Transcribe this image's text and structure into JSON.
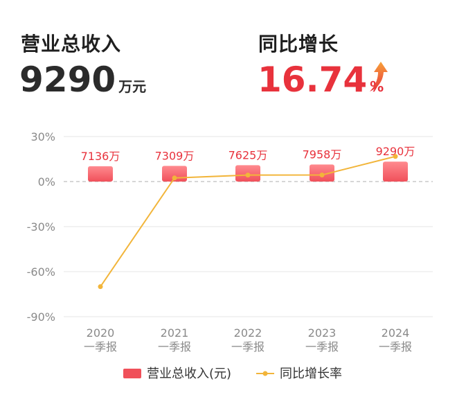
{
  "kpis": {
    "revenue": {
      "label": "营业总收入",
      "value": "9290",
      "unit": "万元"
    },
    "growth": {
      "label": "同比增长",
      "value": "16.74",
      "unit": "%",
      "direction": "up-arrow-icon"
    }
  },
  "colors": {
    "bar": "#f0505a",
    "bar_light": "#ff8a8f",
    "line": "#f2b53a",
    "bar_label": "#e8323c",
    "axis_text": "#8a8a8a",
    "grid": "#e6e6e6",
    "zero_line": "#c8c8c8"
  },
  "chart_data": {
    "type": "bar+line",
    "categories": [
      {
        "year": "2020",
        "period": "一季报"
      },
      {
        "year": "2021",
        "period": "一季报"
      },
      {
        "year": "2022",
        "period": "一季报"
      },
      {
        "year": "2023",
        "period": "一季报"
      },
      {
        "year": "2024",
        "period": "一季报"
      }
    ],
    "bar_labels": [
      "7136万",
      "7309万",
      "7625万",
      "7958万",
      "9290万"
    ],
    "series": [
      {
        "name": "营业总收入(元)",
        "type": "bar",
        "values": [
          7136,
          7309,
          7625,
          7958,
          9290
        ],
        "unit": "万"
      },
      {
        "name": "同比增长率",
        "type": "line",
        "values": [
          -70,
          2.4,
          4.3,
          4.4,
          16.74
        ],
        "unit": "%"
      }
    ],
    "y_ticks": [
      "30%",
      "0%",
      "-30%",
      "-60%",
      "-90%"
    ],
    "y_tick_values": [
      30,
      0,
      -30,
      -60,
      -90
    ],
    "ylim": [
      -90,
      30
    ],
    "grid": true,
    "legend_position": "bottom"
  }
}
